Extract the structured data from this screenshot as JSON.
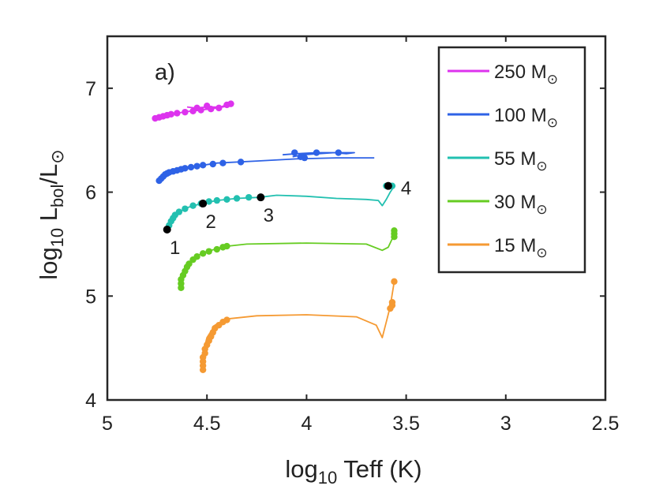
{
  "chart_data": {
    "type": "line",
    "panel_label": "a)",
    "xlabel": {
      "prefix": "log",
      "sub": "10",
      "rest": " Teff (K)"
    },
    "ylabel": {
      "prefix": "log",
      "sub1": "10",
      "mid": " L",
      "sub2": "bol",
      "tail": "/L",
      "sym": "⊙"
    },
    "xlim": [
      5,
      2.5
    ],
    "ylim": [
      4,
      7.5
    ],
    "xticks": [
      5,
      4.5,
      4,
      3.5,
      3,
      2.5
    ],
    "xtick_labels": [
      "5",
      "4.5",
      "4",
      "3.5",
      "3",
      "2.5"
    ],
    "yticks": [
      4,
      5,
      6,
      7
    ],
    "ytick_labels": [
      "4",
      "5",
      "6",
      "7"
    ],
    "legend_position": "top-right",
    "grid": false,
    "series": [
      {
        "name": "250 M",
        "mass_label": "250 M",
        "sun_symbol": "⊙",
        "color": "#dd33ee",
        "path": [
          [
            4.76,
            6.71
          ],
          [
            4.72,
            6.74
          ],
          [
            4.68,
            6.75
          ],
          [
            4.62,
            6.77
          ],
          [
            4.55,
            6.79
          ],
          [
            4.48,
            6.8
          ],
          [
            4.43,
            6.82
          ],
          [
            4.39,
            6.85
          ],
          [
            4.37,
            6.84
          ],
          [
            4.42,
            6.82
          ],
          [
            4.5,
            6.82
          ],
          [
            4.56,
            6.81
          ],
          [
            4.6,
            6.82
          ]
        ],
        "points": [
          [
            4.76,
            6.71
          ],
          [
            4.74,
            6.72
          ],
          [
            4.72,
            6.73
          ],
          [
            4.7,
            6.74
          ],
          [
            4.68,
            6.75
          ],
          [
            4.65,
            6.76
          ],
          [
            4.61,
            6.77
          ],
          [
            4.57,
            6.78
          ],
          [
            4.53,
            6.79
          ],
          [
            4.48,
            6.8
          ],
          [
            4.44,
            6.81
          ],
          [
            4.4,
            6.84
          ],
          [
            4.38,
            6.85
          ],
          [
            4.5,
            6.83
          ],
          [
            4.55,
            6.81
          ]
        ]
      },
      {
        "name": "100 M",
        "mass_label": "100 M",
        "sun_symbol": "⊙",
        "color": "#2e62e6",
        "path": [
          [
            4.74,
            6.11
          ],
          [
            4.71,
            6.17
          ],
          [
            4.68,
            6.2
          ],
          [
            4.63,
            6.23
          ],
          [
            4.55,
            6.25
          ],
          [
            4.45,
            6.28
          ],
          [
            4.25,
            6.3
          ],
          [
            4.05,
            6.32
          ],
          [
            3.85,
            6.33
          ],
          [
            3.66,
            6.33
          ]
        ],
        "path2": [
          [
            4.12,
            6.36
          ],
          [
            4.05,
            6.37
          ],
          [
            3.95,
            6.38
          ],
          [
            3.86,
            6.38
          ],
          [
            3.8,
            6.37
          ],
          [
            3.76,
            6.38
          ],
          [
            3.86,
            6.38
          ],
          [
            4.02,
            6.36
          ],
          [
            4.07,
            6.34
          ]
        ],
        "points": [
          [
            4.74,
            6.11
          ],
          [
            4.73,
            6.13
          ],
          [
            4.72,
            6.15
          ],
          [
            4.71,
            6.17
          ],
          [
            4.7,
            6.18
          ],
          [
            4.69,
            6.19
          ],
          [
            4.67,
            6.2
          ],
          [
            4.65,
            6.21
          ],
          [
            4.63,
            6.22
          ],
          [
            4.61,
            6.23
          ],
          [
            4.58,
            6.24
          ],
          [
            4.55,
            6.25
          ],
          [
            4.52,
            6.26
          ],
          [
            4.47,
            6.27
          ],
          [
            4.42,
            6.28
          ],
          [
            4.33,
            6.29
          ],
          [
            4.06,
            6.38
          ],
          [
            4.03,
            6.34
          ],
          [
            4.01,
            6.33
          ],
          [
            3.95,
            6.38
          ],
          [
            3.84,
            6.38
          ]
        ]
      },
      {
        "name": "55 M",
        "mass_label": "55 M",
        "sun_symbol": "⊙",
        "color": "#22c0b0",
        "path": [
          [
            4.7,
            5.64
          ],
          [
            4.68,
            5.72
          ],
          [
            4.65,
            5.8
          ],
          [
            4.6,
            5.85
          ],
          [
            4.53,
            5.89
          ],
          [
            4.45,
            5.92
          ],
          [
            4.35,
            5.94
          ],
          [
            4.24,
            5.95
          ],
          [
            4.15,
            5.97
          ],
          [
            4.0,
            5.96
          ],
          [
            3.85,
            5.94
          ],
          [
            3.7,
            5.93
          ],
          [
            3.64,
            5.92
          ],
          [
            3.62,
            5.87
          ],
          [
            3.6,
            5.93
          ],
          [
            3.58,
            6.0
          ],
          [
            3.56,
            6.06
          ]
        ],
        "points": [
          [
            4.7,
            5.64
          ],
          [
            4.69,
            5.68
          ],
          [
            4.68,
            5.72
          ],
          [
            4.67,
            5.75
          ],
          [
            4.66,
            5.78
          ],
          [
            4.64,
            5.81
          ],
          [
            4.61,
            5.84
          ],
          [
            4.57,
            5.87
          ],
          [
            4.53,
            5.89
          ],
          [
            4.49,
            5.91
          ],
          [
            4.45,
            5.92
          ],
          [
            4.4,
            5.93
          ],
          [
            4.35,
            5.94
          ],
          [
            4.29,
            5.95
          ],
          [
            3.6,
            6.06
          ],
          [
            3.58,
            6.06
          ],
          [
            3.57,
            6.06
          ]
        ]
      },
      {
        "name": "30 M",
        "mass_label": "30 M",
        "sun_symbol": "⊙",
        "color": "#66cc22",
        "path": [
          [
            4.63,
            5.08
          ],
          [
            4.63,
            5.18
          ],
          [
            4.6,
            5.3
          ],
          [
            4.56,
            5.38
          ],
          [
            4.5,
            5.43
          ],
          [
            4.4,
            5.48
          ],
          [
            4.3,
            5.5
          ],
          [
            4.0,
            5.51
          ],
          [
            3.7,
            5.5
          ],
          [
            3.62,
            5.44
          ],
          [
            3.59,
            5.47
          ],
          [
            3.57,
            5.55
          ],
          [
            3.56,
            5.62
          ]
        ],
        "points": [
          [
            4.63,
            5.08
          ],
          [
            4.63,
            5.12
          ],
          [
            4.63,
            5.16
          ],
          [
            4.62,
            5.2
          ],
          [
            4.61,
            5.24
          ],
          [
            4.6,
            5.28
          ],
          [
            4.59,
            5.31
          ],
          [
            4.57,
            5.35
          ],
          [
            4.55,
            5.38
          ],
          [
            4.52,
            5.41
          ],
          [
            4.49,
            5.43
          ],
          [
            4.45,
            5.45
          ],
          [
            4.42,
            5.47
          ],
          [
            4.4,
            5.48
          ],
          [
            3.56,
            5.57
          ],
          [
            3.56,
            5.6
          ],
          [
            3.56,
            5.63
          ]
        ]
      },
      {
        "name": "15 M",
        "mass_label": "15 M",
        "sun_symbol": "⊙",
        "color": "#f59a33",
        "path": [
          [
            4.52,
            4.29
          ],
          [
            4.52,
            4.45
          ],
          [
            4.5,
            4.6
          ],
          [
            4.46,
            4.72
          ],
          [
            4.4,
            4.78
          ],
          [
            4.25,
            4.81
          ],
          [
            4.0,
            4.82
          ],
          [
            3.75,
            4.8
          ],
          [
            3.65,
            4.72
          ],
          [
            3.62,
            4.6
          ],
          [
            3.6,
            4.75
          ],
          [
            3.58,
            4.9
          ],
          [
            3.56,
            5.14
          ]
        ],
        "points": [
          [
            4.52,
            4.29
          ],
          [
            4.52,
            4.33
          ],
          [
            4.52,
            4.37
          ],
          [
            4.52,
            4.41
          ],
          [
            4.51,
            4.45
          ],
          [
            4.51,
            4.49
          ],
          [
            4.5,
            4.53
          ],
          [
            4.49,
            4.57
          ],
          [
            4.48,
            4.61
          ],
          [
            4.47,
            4.65
          ],
          [
            4.46,
            4.69
          ],
          [
            4.44,
            4.72
          ],
          [
            4.42,
            4.75
          ],
          [
            4.4,
            4.77
          ],
          [
            3.58,
            4.88
          ],
          [
            3.57,
            4.91
          ],
          [
            3.57,
            4.94
          ],
          [
            3.56,
            5.14
          ]
        ]
      }
    ],
    "labeled_points": [
      {
        "label": "1",
        "x": 4.7,
        "y": 5.64,
        "label_pos": "below"
      },
      {
        "label": "2",
        "x": 4.52,
        "y": 5.89,
        "label_pos": "below"
      },
      {
        "label": "3",
        "x": 4.23,
        "y": 5.95,
        "label_pos": "below"
      },
      {
        "label": "4",
        "x": 3.59,
        "y": 6.06,
        "label_pos": "right"
      }
    ]
  }
}
